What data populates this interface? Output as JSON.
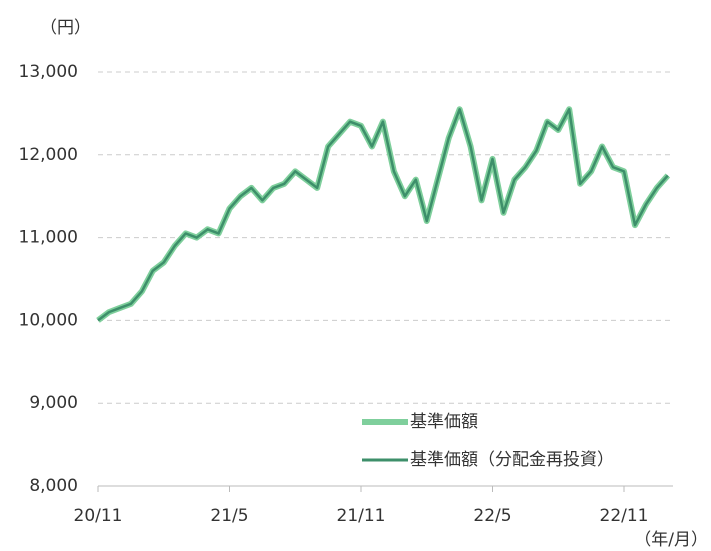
{
  "chart_data": {
    "type": "line",
    "y_label": "（円）",
    "x_label": "（年/月）",
    "categories": [
      "20/11",
      null,
      null,
      null,
      null,
      null,
      null,
      null,
      null,
      null,
      null,
      null,
      "21/5",
      null,
      null,
      null,
      null,
      null,
      null,
      null,
      null,
      null,
      null,
      null,
      "21/11",
      null,
      null,
      null,
      null,
      null,
      null,
      null,
      null,
      null,
      null,
      null,
      "22/5",
      null,
      null,
      null,
      null,
      null,
      null,
      null,
      null,
      null,
      null,
      null,
      "22/11",
      null,
      null,
      null,
      null
    ],
    "series": [
      {
        "name": "基準価額",
        "color": "#7fcf9c",
        "values": [
          10000,
          10100,
          10150,
          10200,
          10350,
          10600,
          10700,
          10900,
          11050,
          11000,
          11100,
          11050,
          11350,
          11500,
          11600,
          11450,
          11600,
          11650,
          11800,
          11700,
          11600,
          12100,
          12250,
          12400,
          12350,
          12100,
          12400,
          11800,
          11500,
          11700,
          11200,
          11700,
          12200,
          12550,
          12100,
          11450,
          11950,
          11300,
          11700,
          11850,
          12050,
          12400,
          12300,
          12550,
          11650,
          11800,
          12100,
          11850,
          11800,
          11150,
          11400,
          11600,
          11750
        ]
      },
      {
        "name": "基準価額（分配金再投資）",
        "color": "#3d8f6a",
        "values": [
          10000,
          10100,
          10150,
          10200,
          10350,
          10600,
          10700,
          10900,
          11050,
          11000,
          11100,
          11050,
          11350,
          11500,
          11600,
          11450,
          11600,
          11650,
          11800,
          11700,
          11600,
          12100,
          12250,
          12400,
          12350,
          12100,
          12400,
          11800,
          11500,
          11700,
          11200,
          11700,
          12200,
          12550,
          12100,
          11450,
          11950,
          11300,
          11700,
          11850,
          12050,
          12400,
          12300,
          12550,
          11650,
          11800,
          12100,
          11850,
          11800,
          11150,
          11400,
          11600,
          11750
        ]
      }
    ],
    "ylim": [
      8000,
      13000
    ],
    "yticks": [
      {
        "value": 8000,
        "label": "8,000"
      },
      {
        "value": 9000,
        "label": "9,000"
      },
      {
        "value": 10000,
        "label": "10,000"
      },
      {
        "value": 11000,
        "label": "11,000"
      },
      {
        "value": 12000,
        "label": "12,000"
      },
      {
        "value": 13000,
        "label": "13,000"
      }
    ],
    "grid": true
  }
}
